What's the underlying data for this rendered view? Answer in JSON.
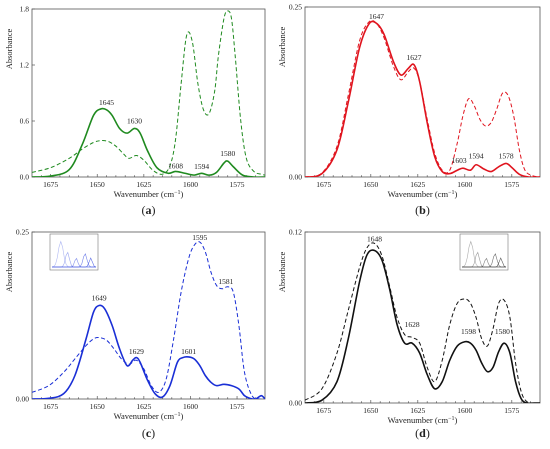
{
  "figure": {
    "panels": [
      "(a)",
      "(b)",
      "(c)",
      "(d)"
    ]
  },
  "chart_data": [
    {
      "type": "line",
      "panel_label": "(a)",
      "xlabel": "Wavenumber (cm",
      "xlabel_sup": "−1",
      "xlabel_end": ")",
      "ylabel": "Absorbance",
      "xlim": [
        1685,
        1560
      ],
      "ylim": [
        0,
        1.8
      ],
      "x_ticks": [
        1675,
        1650,
        1625,
        1600,
        1575
      ],
      "y_ticks": [
        0.0,
        0.6,
        1.2,
        1.8
      ],
      "y_tick_labels": [
        "0.0",
        "0.6",
        "1.2",
        "1.8"
      ],
      "color": "#1f8a1f",
      "inset": false,
      "peak_labels": [
        {
          "label": "1645",
          "x": 1645,
          "y": 0.72
        },
        {
          "label": "1630",
          "x": 1630,
          "y": 0.52
        },
        {
          "label": "1608",
          "x": 1608,
          "y": 0.04
        },
        {
          "label": "1594",
          "x": 1594,
          "y": 0.03
        },
        {
          "label": "1580",
          "x": 1580,
          "y": 0.17
        }
      ],
      "series": [
        {
          "style": "solid",
          "x": [
            1685,
            1675,
            1665,
            1658,
            1652,
            1648,
            1645,
            1642,
            1638,
            1634,
            1630,
            1627,
            1623,
            1618,
            1612,
            1608,
            1603,
            1598,
            1594,
            1590,
            1586,
            1582,
            1580,
            1577,
            1572,
            1566,
            1560
          ],
          "y": [
            0,
            0.01,
            0.08,
            0.35,
            0.66,
            0.73,
            0.72,
            0.66,
            0.52,
            0.47,
            0.52,
            0.47,
            0.28,
            0.1,
            0.04,
            0.06,
            0.04,
            0.02,
            0.04,
            0.02,
            0.05,
            0.15,
            0.17,
            0.11,
            0.02,
            0,
            0
          ]
        },
        {
          "style": "dashed",
          "x": [
            1685,
            1675,
            1665,
            1658,
            1652,
            1648,
            1644,
            1640,
            1636,
            1633,
            1629,
            1625,
            1620,
            1615,
            1611,
            1608,
            1605,
            1602,
            1599,
            1596,
            1593,
            1590,
            1587,
            1585,
            1582,
            1580,
            1578,
            1576,
            1573,
            1570,
            1566,
            1562,
            1560
          ],
          "y": [
            0.05,
            0.1,
            0.2,
            0.3,
            0.37,
            0.39,
            0.38,
            0.33,
            0.25,
            0.2,
            0.23,
            0.18,
            0.07,
            0.03,
            0.12,
            0.4,
            1.0,
            1.52,
            1.45,
            1.0,
            0.72,
            0.68,
            0.92,
            1.3,
            1.7,
            1.78,
            1.7,
            1.3,
            0.6,
            0.2,
            0.06,
            0.03,
            0.02
          ]
        }
      ]
    },
    {
      "type": "line",
      "panel_label": "(b)",
      "xlabel": "Wavenumber (cm",
      "xlabel_sup": "−1",
      "xlabel_end": ")",
      "ylabel": "Absorbance",
      "xlim": [
        1685,
        1560
      ],
      "ylim": [
        0,
        0.25
      ],
      "x_ticks": [
        1675,
        1650,
        1625,
        1600,
        1575
      ],
      "y_ticks": [
        0.0,
        0.25
      ],
      "y_tick_labels": [
        "0.00",
        "0.25"
      ],
      "color": "#e0141e",
      "inset": false,
      "peak_labels": [
        {
          "label": "1647",
          "x": 1647,
          "y": 0.225
        },
        {
          "label": "1627",
          "x": 1627,
          "y": 0.165
        },
        {
          "label": "1603",
          "x": 1603,
          "y": 0.013
        },
        {
          "label": "1594",
          "x": 1594,
          "y": 0.02
        },
        {
          "label": "1578",
          "x": 1578,
          "y": 0.02
        }
      ],
      "series": [
        {
          "style": "solid",
          "x": [
            1685,
            1676,
            1668,
            1662,
            1656,
            1651,
            1647,
            1643,
            1638,
            1634,
            1630,
            1627,
            1624,
            1620,
            1616,
            1612,
            1608,
            1604,
            1601,
            1597,
            1594,
            1590,
            1586,
            1582,
            1578,
            1575,
            1571,
            1566,
            1560
          ],
          "y": [
            0,
            0.005,
            0.04,
            0.11,
            0.19,
            0.225,
            0.226,
            0.21,
            0.17,
            0.15,
            0.16,
            0.165,
            0.14,
            0.08,
            0.03,
            0.008,
            0.005,
            0.01,
            0.013,
            0.01,
            0.018,
            0.012,
            0.008,
            0.015,
            0.02,
            0.014,
            0.004,
            0,
            0
          ]
        },
        {
          "style": "dashed",
          "x": [
            1685,
            1676,
            1668,
            1662,
            1656,
            1651,
            1647,
            1643,
            1638,
            1634,
            1630,
            1627,
            1624,
            1620,
            1616,
            1612,
            1608,
            1604,
            1601,
            1598,
            1595,
            1592,
            1589,
            1586,
            1583,
            1580,
            1577,
            1574,
            1571,
            1568,
            1564,
            1560
          ],
          "y": [
            0,
            0.006,
            0.045,
            0.12,
            0.2,
            0.228,
            0.226,
            0.205,
            0.163,
            0.143,
            0.155,
            0.16,
            0.14,
            0.085,
            0.035,
            0.01,
            0.01,
            0.05,
            0.09,
            0.115,
            0.105,
            0.085,
            0.075,
            0.08,
            0.1,
            0.123,
            0.12,
            0.09,
            0.04,
            0.01,
            0.002,
            0
          ]
        }
      ]
    },
    {
      "type": "line",
      "panel_label": "(c)",
      "xlabel": "Wavenumber (cm",
      "xlabel_sup": "−1",
      "xlabel_end": ")",
      "ylabel": "Absorbance",
      "xlim": [
        1685,
        1560
      ],
      "ylim": [
        0,
        0.25
      ],
      "x_ticks": [
        1675,
        1650,
        1625,
        1600,
        1575
      ],
      "y_ticks": [
        0.0,
        0.25
      ],
      "y_tick_labels": [
        "0.00",
        "0.25"
      ],
      "color": "#1a2fd6",
      "inset": true,
      "peak_labels": [
        {
          "label": "1649",
          "x": 1649,
          "y": 0.14
        },
        {
          "label": "1629",
          "x": 1629,
          "y": 0.06
        },
        {
          "label": "1601",
          "x": 1601,
          "y": 0.06
        },
        {
          "label": "1595",
          "x": 1595,
          "y": 0.235
        },
        {
          "label": "1581",
          "x": 1581,
          "y": 0.165
        }
      ],
      "series": [
        {
          "style": "solid",
          "x": [
            1685,
            1676,
            1668,
            1662,
            1656,
            1652,
            1649,
            1646,
            1642,
            1638,
            1634,
            1631,
            1629,
            1627,
            1623,
            1619,
            1615,
            1611,
            1607,
            1604,
            1601,
            1598,
            1595,
            1592,
            1589,
            1586,
            1582,
            1578,
            1574,
            1571,
            1568,
            1565,
            1562,
            1560
          ],
          "y": [
            0,
            0.001,
            0.008,
            0.035,
            0.09,
            0.13,
            0.14,
            0.135,
            0.11,
            0.075,
            0.05,
            0.058,
            0.062,
            0.055,
            0.028,
            0.008,
            0.003,
            0.02,
            0.055,
            0.062,
            0.063,
            0.06,
            0.05,
            0.035,
            0.025,
            0.02,
            0.022,
            0.02,
            0.015,
            0.005,
            0.001,
            0,
            0.005,
            0
          ]
        },
        {
          "style": "dashed",
          "x": [
            1685,
            1676,
            1668,
            1662,
            1656,
            1652,
            1649,
            1645,
            1641,
            1637,
            1633,
            1629,
            1625,
            1621,
            1617,
            1613,
            1609,
            1605,
            1601,
            1598,
            1595,
            1592,
            1589,
            1586,
            1583,
            1580,
            1577,
            1574,
            1571,
            1567,
            1563,
            1560
          ],
          "y": [
            0.01,
            0.02,
            0.04,
            0.06,
            0.08,
            0.09,
            0.092,
            0.088,
            0.075,
            0.06,
            0.052,
            0.058,
            0.045,
            0.02,
            0.01,
            0.03,
            0.09,
            0.16,
            0.21,
            0.23,
            0.235,
            0.22,
            0.19,
            0.17,
            0.165,
            0.168,
            0.16,
            0.11,
            0.04,
            0.005,
            0,
            0
          ]
        }
      ]
    },
    {
      "type": "line",
      "panel_label": "(d)",
      "xlabel": "Wavenumber (cm",
      "xlabel_sup": "−1",
      "xlabel_end": ")",
      "ylabel": "Absorbance",
      "xlim": [
        1685,
        1560
      ],
      "ylim": [
        0,
        0.12
      ],
      "x_ticks": [
        1675,
        1650,
        1625,
        1600,
        1575
      ],
      "y_ticks": [
        0.0,
        0.12
      ],
      "y_tick_labels": [
        "0.00",
        "0.12"
      ],
      "color": "#111111",
      "inset": true,
      "peak_labels": [
        {
          "label": "1648",
          "x": 1648,
          "y": 0.11
        },
        {
          "label": "1628",
          "x": 1628,
          "y": 0.05
        },
        {
          "label": "1598",
          "x": 1598,
          "y": 0.045
        },
        {
          "label": "1580",
          "x": 1580,
          "y": 0.045
        }
      ],
      "series": [
        {
          "style": "solid",
          "x": [
            1685,
            1676,
            1668,
            1662,
            1656,
            1652,
            1648,
            1644,
            1640,
            1636,
            1632,
            1628,
            1624,
            1620,
            1616,
            1612,
            1608,
            1604,
            1600,
            1597,
            1594,
            1591,
            1588,
            1585,
            1582,
            1579,
            1576,
            1573,
            1570,
            1567,
            1563,
            1560
          ],
          "y": [
            0,
            0.002,
            0.015,
            0.045,
            0.085,
            0.104,
            0.107,
            0.1,
            0.08,
            0.055,
            0.042,
            0.042,
            0.035,
            0.02,
            0.01,
            0.015,
            0.03,
            0.04,
            0.043,
            0.042,
            0.037,
            0.028,
            0.022,
            0.025,
            0.036,
            0.042,
            0.035,
            0.015,
            0.003,
            0,
            0,
            0
          ]
        },
        {
          "style": "dashed",
          "x": [
            1685,
            1676,
            1668,
            1662,
            1656,
            1652,
            1648,
            1644,
            1640,
            1636,
            1632,
            1628,
            1624,
            1620,
            1616,
            1612,
            1608,
            1604,
            1600,
            1597,
            1594,
            1591,
            1588,
            1585,
            1582,
            1579,
            1576,
            1573,
            1570,
            1567,
            1563,
            1560
          ],
          "y": [
            0.002,
            0.01,
            0.035,
            0.065,
            0.095,
            0.109,
            0.112,
            0.103,
            0.082,
            0.06,
            0.048,
            0.046,
            0.042,
            0.025,
            0.015,
            0.03,
            0.055,
            0.07,
            0.073,
            0.07,
            0.06,
            0.045,
            0.04,
            0.052,
            0.07,
            0.072,
            0.06,
            0.028,
            0.008,
            0.001,
            0,
            0
          ]
        }
      ]
    }
  ]
}
